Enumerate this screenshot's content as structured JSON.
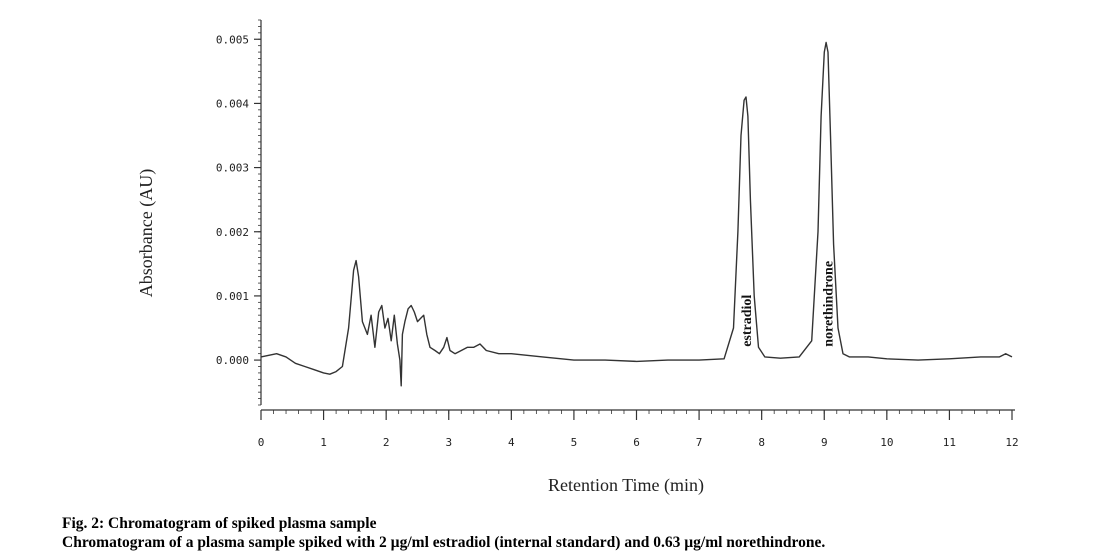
{
  "caption": {
    "title": "Fig. 2: Chromatogram of spiked plasma sample",
    "text": "Chromatogram of a plasma sample spiked with 2 µg/ml estradiol (internal standard) and 0.63 µg/ml norethindrone."
  },
  "chart_data": {
    "type": "line",
    "title": "",
    "xlabel": "Retention Time (min)",
    "ylabel": "Absorbance (AU)",
    "xlim": [
      0,
      12
    ],
    "ylim": [
      -0.0007,
      0.0053
    ],
    "x_ticks": [
      0,
      1,
      2,
      3,
      4,
      5,
      6,
      7,
      8,
      9,
      10,
      11,
      12
    ],
    "x_tick_labels": [
      "0",
      "1",
      "2",
      "3",
      "4",
      "5",
      "6",
      "7",
      "8",
      "9",
      "10",
      "11",
      "12"
    ],
    "y_ticks": [
      0.0,
      0.001,
      0.002,
      0.003,
      0.004,
      0.005
    ],
    "y_tick_labels": [
      "0.000",
      "0.001",
      "0.002",
      "0.003",
      "0.004",
      "0.005"
    ],
    "grid": false,
    "line_color": "#333333",
    "series": [
      {
        "values_x": [
          0.0,
          0.25,
          0.4,
          0.55,
          0.7,
          0.85,
          1.0,
          1.1,
          1.2,
          1.3,
          1.4,
          1.48,
          1.52,
          1.56,
          1.62,
          1.7,
          1.76,
          1.82,
          1.88,
          1.93,
          1.98,
          2.03,
          2.08,
          2.13,
          2.18,
          2.22,
          2.24,
          2.26,
          2.3,
          2.35,
          2.4,
          2.45,
          2.5,
          2.55,
          2.6,
          2.65,
          2.7,
          2.78,
          2.85,
          2.92,
          2.97,
          3.02,
          3.1,
          3.2,
          3.3,
          3.4,
          3.5,
          3.6,
          3.8,
          4.0,
          4.5,
          5.0,
          5.5,
          6.0,
          6.5,
          7.0,
          7.4,
          7.55,
          7.62,
          7.67,
          7.72,
          7.75,
          7.78,
          7.82,
          7.88,
          7.95,
          8.05,
          8.3,
          8.6,
          8.8,
          8.9,
          8.95,
          9.0,
          9.03,
          9.06,
          9.1,
          9.15,
          9.22,
          9.3,
          9.4,
          9.7,
          10.0,
          10.5,
          11.0,
          11.5,
          11.8,
          11.9,
          12.0
        ],
        "values_y": [
          5e-05,
          0.0001,
          5e-05,
          -5e-05,
          -0.0001,
          -0.00015,
          -0.0002,
          -0.00022,
          -0.00018,
          -0.0001,
          0.0005,
          0.0014,
          0.00155,
          0.0013,
          0.0006,
          0.0004,
          0.0007,
          0.0002,
          0.00075,
          0.00085,
          0.0005,
          0.00065,
          0.0003,
          0.0007,
          0.00025,
          0.0,
          -0.0004,
          0.0004,
          0.0006,
          0.0008,
          0.00085,
          0.00075,
          0.0006,
          0.00065,
          0.0007,
          0.0004,
          0.0002,
          0.00015,
          0.0001,
          0.0002,
          0.00035,
          0.00015,
          0.0001,
          0.00015,
          0.0002,
          0.0002,
          0.00025,
          0.00015,
          0.0001,
          0.0001,
          5e-05,
          0.0,
          0.0,
          -2e-05,
          0.0,
          0.0,
          2e-05,
          0.0005,
          0.002,
          0.0035,
          0.00405,
          0.0041,
          0.0038,
          0.0025,
          0.001,
          0.0002,
          5e-05,
          3e-05,
          5e-05,
          0.0003,
          0.002,
          0.0038,
          0.0048,
          0.00495,
          0.0048,
          0.0035,
          0.0018,
          0.0005,
          0.0001,
          5e-05,
          5e-05,
          2e-05,
          0.0,
          2e-05,
          5e-05,
          5e-05,
          0.0001,
          5e-05
        ]
      }
    ],
    "annotations": [
      {
        "text": "estradiol",
        "x": 7.75,
        "y": 2e-05
      },
      {
        "text": "norethindrone",
        "x": 9.05,
        "y": 2e-05
      }
    ]
  }
}
